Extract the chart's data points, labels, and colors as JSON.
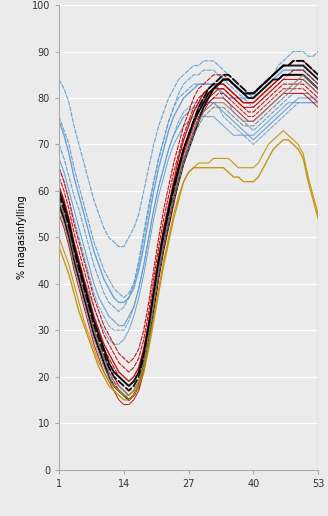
{
  "x_ticks": [
    1,
    14,
    27,
    40,
    53
  ],
  "ylim": [
    0,
    100
  ],
  "xlim": [
    1,
    53
  ],
  "ylabel": "% magasinfylling",
  "yticks": [
    0,
    10,
    20,
    30,
    40,
    50,
    60,
    70,
    80,
    90,
    100
  ],
  "background_color": "#ebebeb",
  "series": [
    {
      "color": "#5b9bd5",
      "lw": 0.8,
      "ls": "--",
      "data": [
        84,
        82,
        79,
        74,
        70,
        66,
        62,
        58,
        55,
        52,
        50,
        49,
        48,
        48,
        50,
        52,
        55,
        60,
        65,
        70,
        74,
        77,
        80,
        82,
        84,
        85,
        86,
        87,
        87,
        88,
        88,
        88,
        87,
        86,
        85,
        84,
        83,
        82,
        81,
        80,
        82,
        83,
        84,
        85,
        87,
        88,
        89,
        90,
        90,
        90,
        89,
        89,
        90
      ]
    },
    {
      "color": "#5b9bd5",
      "lw": 0.8,
      "ls": "--",
      "data": [
        76,
        73,
        70,
        65,
        61,
        57,
        53,
        49,
        46,
        43,
        41,
        39,
        38,
        37,
        38,
        40,
        44,
        50,
        56,
        62,
        67,
        71,
        75,
        78,
        81,
        83,
        84,
        85,
        85,
        86,
        86,
        86,
        85,
        84,
        83,
        82,
        81,
        80,
        79,
        78,
        79,
        80,
        81,
        82,
        83,
        84,
        85,
        86,
        86,
        86,
        85,
        84,
        83
      ]
    },
    {
      "color": "#5b9bd5",
      "lw": 1.0,
      "ls": "-",
      "data": [
        75,
        72,
        68,
        63,
        59,
        55,
        51,
        47,
        44,
        41,
        39,
        37,
        36,
        36,
        37,
        39,
        43,
        48,
        54,
        60,
        65,
        69,
        73,
        76,
        78,
        80,
        81,
        82,
        83,
        83,
        83,
        83,
        82,
        81,
        80,
        80,
        80,
        80,
        80,
        80,
        81,
        82,
        83,
        84,
        85,
        86,
        86,
        86,
        86,
        86,
        85,
        84,
        83
      ]
    },
    {
      "color": "#5b9bd5",
      "lw": 0.8,
      "ls": "-",
      "data": [
        67,
        64,
        60,
        56,
        52,
        48,
        44,
        40,
        37,
        35,
        33,
        32,
        31,
        31,
        33,
        35,
        39,
        44,
        50,
        56,
        61,
        65,
        69,
        72,
        74,
        76,
        77,
        78,
        78,
        79,
        79,
        79,
        78,
        77,
        76,
        75,
        74,
        73,
        72,
        71,
        72,
        73,
        74,
        75,
        76,
        77,
        78,
        79,
        80,
        80,
        80,
        80,
        79
      ]
    },
    {
      "color": "#5b9bd5",
      "lw": 0.8,
      "ls": "--",
      "data": [
        70,
        67,
        63,
        59,
        56,
        52,
        48,
        44,
        41,
        38,
        36,
        35,
        34,
        35,
        37,
        40,
        45,
        51,
        57,
        62,
        67,
        71,
        75,
        78,
        80,
        81,
        82,
        83,
        83,
        83,
        83,
        83,
        82,
        80,
        79,
        77,
        76,
        75,
        74,
        73,
        74,
        75,
        76,
        77,
        78,
        79,
        80,
        81,
        81,
        81,
        81,
        80,
        80
      ]
    },
    {
      "color": "#5b9bd5",
      "lw": 0.7,
      "ls": "--",
      "data": [
        65,
        62,
        58,
        54,
        50,
        46,
        42,
        38,
        35,
        33,
        31,
        30,
        30,
        30,
        32,
        35,
        39,
        44,
        50,
        56,
        61,
        65,
        69,
        72,
        75,
        77,
        78,
        79,
        79,
        79,
        79,
        79,
        78,
        76,
        75,
        74,
        73,
        72,
        71,
        70,
        71,
        72,
        73,
        74,
        75,
        76,
        77,
        78,
        79,
        79,
        79,
        79,
        79
      ]
    },
    {
      "color": "#5b9bd5",
      "lw": 0.7,
      "ls": "-",
      "data": [
        60,
        57,
        53,
        49,
        45,
        41,
        38,
        35,
        32,
        30,
        28,
        27,
        27,
        28,
        30,
        33,
        37,
        42,
        48,
        54,
        59,
        63,
        67,
        70,
        72,
        74,
        75,
        76,
        76,
        76,
        76,
        76,
        75,
        74,
        73,
        72,
        72,
        72,
        72,
        72,
        73,
        74,
        75,
        76,
        77,
        78,
        79,
        79,
        79,
        79,
        79,
        79,
        79
      ]
    },
    {
      "color": "#c00000",
      "lw": 0.8,
      "ls": "--",
      "data": [
        65,
        62,
        58,
        53,
        49,
        45,
        41,
        37,
        34,
        31,
        29,
        27,
        25,
        24,
        23,
        24,
        26,
        30,
        36,
        43,
        50,
        56,
        61,
        66,
        70,
        74,
        77,
        80,
        82,
        83,
        84,
        85,
        85,
        85,
        84,
        83,
        82,
        81,
        81,
        81,
        82,
        83,
        84,
        85,
        86,
        87,
        87,
        88,
        88,
        88,
        87,
        86,
        85
      ]
    },
    {
      "color": "#c00000",
      "lw": 0.8,
      "ls": "--",
      "data": [
        63,
        60,
        56,
        51,
        47,
        43,
        39,
        35,
        32,
        29,
        27,
        25,
        23,
        22,
        21,
        22,
        24,
        28,
        34,
        41,
        48,
        54,
        59,
        64,
        68,
        72,
        75,
        78,
        80,
        81,
        82,
        83,
        83,
        83,
        82,
        81,
        80,
        79,
        79,
        79,
        80,
        81,
        82,
        83,
        84,
        85,
        85,
        86,
        86,
        86,
        85,
        84,
        83
      ]
    },
    {
      "color": "#c00000",
      "lw": 1.0,
      "ls": "-",
      "data": [
        61,
        58,
        54,
        49,
        45,
        41,
        37,
        33,
        30,
        27,
        25,
        23,
        21,
        20,
        19,
        20,
        22,
        26,
        32,
        39,
        46,
        52,
        57,
        62,
        67,
        71,
        74,
        77,
        79,
        81,
        82,
        83,
        83,
        83,
        82,
        81,
        80,
        79,
        79,
        79,
        80,
        81,
        82,
        83,
        84,
        85,
        85,
        85,
        85,
        85,
        84,
        83,
        82
      ]
    },
    {
      "color": "#c00000",
      "lw": 0.8,
      "ls": "-",
      "data": [
        58,
        55,
        51,
        46,
        42,
        38,
        34,
        30,
        27,
        24,
        22,
        20,
        18,
        17,
        16,
        17,
        19,
        23,
        29,
        36,
        43,
        49,
        54,
        59,
        64,
        68,
        71,
        74,
        77,
        79,
        80,
        81,
        82,
        82,
        81,
        80,
        79,
        78,
        78,
        78,
        79,
        80,
        81,
        82,
        83,
        84,
        84,
        84,
        84,
        84,
        83,
        82,
        81
      ]
    },
    {
      "color": "#c00000",
      "lw": 0.8,
      "ls": "--",
      "data": [
        60,
        57,
        53,
        48,
        44,
        40,
        36,
        32,
        29,
        26,
        24,
        22,
        20,
        19,
        18,
        19,
        21,
        25,
        31,
        38,
        45,
        51,
        56,
        61,
        65,
        69,
        72,
        75,
        78,
        80,
        81,
        82,
        82,
        82,
        81,
        80,
        79,
        78,
        77,
        77,
        78,
        79,
        80,
        81,
        82,
        83,
        83,
        83,
        83,
        83,
        82,
        81,
        80
      ]
    },
    {
      "color": "#c00000",
      "lw": 0.7,
      "ls": "--",
      "data": [
        57,
        54,
        50,
        45,
        41,
        37,
        33,
        29,
        26,
        23,
        21,
        19,
        17,
        16,
        15,
        16,
        18,
        22,
        28,
        35,
        42,
        48,
        53,
        58,
        63,
        67,
        70,
        73,
        76,
        78,
        79,
        80,
        81,
        81,
        80,
        79,
        78,
        77,
        76,
        76,
        77,
        78,
        79,
        80,
        81,
        82,
        82,
        82,
        82,
        82,
        81,
        80,
        79
      ]
    },
    {
      "color": "#c00000",
      "lw": 0.7,
      "ls": "-",
      "data": [
        55,
        52,
        48,
        43,
        39,
        35,
        31,
        27,
        24,
        21,
        19,
        17,
        15,
        14,
        14,
        15,
        17,
        21,
        27,
        34,
        41,
        47,
        52,
        57,
        62,
        66,
        69,
        72,
        75,
        77,
        79,
        80,
        80,
        80,
        79,
        78,
        77,
        76,
        75,
        75,
        76,
        77,
        78,
        79,
        80,
        81,
        81,
        81,
        81,
        81,
        80,
        79,
        78
      ]
    },
    {
      "color": "#000000",
      "lw": 1.4,
      "ls": "-",
      "data": [
        57,
        54,
        50,
        45,
        41,
        37,
        33,
        29,
        26,
        23,
        20,
        18,
        17,
        16,
        15,
        16,
        18,
        22,
        28,
        35,
        42,
        48,
        53,
        58,
        62,
        66,
        69,
        72,
        75,
        78,
        80,
        82,
        83,
        84,
        84,
        83,
        82,
        81,
        80,
        80,
        81,
        82,
        83,
        84,
        84,
        85,
        85,
        85,
        85,
        85,
        84,
        83,
        82
      ]
    },
    {
      "color": "#000000",
      "lw": 1.4,
      "ls": "--",
      "data": [
        59,
        56,
        52,
        47,
        43,
        39,
        35,
        31,
        28,
        25,
        22,
        20,
        19,
        18,
        17,
        18,
        20,
        24,
        30,
        37,
        44,
        50,
        55,
        60,
        65,
        69,
        72,
        75,
        78,
        80,
        82,
        83,
        84,
        85,
        85,
        84,
        83,
        82,
        81,
        81,
        82,
        83,
        84,
        85,
        86,
        87,
        87,
        88,
        88,
        88,
        87,
        86,
        85
      ]
    },
    {
      "color": "#000000",
      "lw": 1.4,
      "ls": "-",
      "data": [
        60,
        57,
        53,
        48,
        44,
        40,
        36,
        32,
        29,
        26,
        23,
        21,
        20,
        19,
        18,
        19,
        21,
        25,
        31,
        38,
        45,
        51,
        56,
        61,
        65,
        69,
        72,
        75,
        77,
        79,
        81,
        82,
        83,
        84,
        84,
        83,
        82,
        81,
        81,
        81,
        82,
        83,
        84,
        85,
        86,
        87,
        87,
        87,
        87,
        87,
        86,
        85,
        84
      ]
    },
    {
      "color": "#808080",
      "lw": 0.8,
      "ls": "-",
      "data": [
        58,
        55,
        51,
        46,
        42,
        38,
        34,
        30,
        27,
        24,
        21,
        19,
        18,
        17,
        16,
        17,
        19,
        23,
        29,
        36,
        43,
        49,
        54,
        59,
        63,
        67,
        70,
        73,
        75,
        77,
        78,
        79,
        79,
        79,
        78,
        77,
        76,
        75,
        75,
        75,
        76,
        77,
        78,
        79,
        80,
        81,
        82,
        83,
        84,
        85,
        84,
        83,
        82
      ]
    },
    {
      "color": "#808080",
      "lw": 0.8,
      "ls": "--",
      "data": [
        56,
        53,
        49,
        44,
        40,
        36,
        32,
        28,
        25,
        22,
        20,
        18,
        17,
        16,
        15,
        16,
        18,
        22,
        28,
        35,
        42,
        48,
        53,
        58,
        62,
        66,
        69,
        72,
        74,
        76,
        77,
        78,
        78,
        78,
        77,
        76,
        75,
        74,
        74,
        74,
        75,
        76,
        77,
        78,
        79,
        80,
        81,
        82,
        83,
        84,
        83,
        82,
        81
      ]
    },
    {
      "color": "#bf8f00",
      "lw": 1.0,
      "ls": "-",
      "data": [
        48,
        45,
        42,
        38,
        34,
        31,
        28,
        25,
        22,
        20,
        18,
        17,
        16,
        15,
        15,
        16,
        18,
        21,
        26,
        32,
        38,
        44,
        49,
        54,
        58,
        62,
        64,
        65,
        65,
        65,
        65,
        65,
        65,
        65,
        64,
        63,
        63,
        62,
        62,
        62,
        63,
        65,
        67,
        69,
        70,
        71,
        71,
        70,
        69,
        67,
        62,
        58,
        54
      ]
    },
    {
      "color": "#bf8f00",
      "lw": 0.8,
      "ls": "-",
      "data": [
        50,
        47,
        44,
        40,
        36,
        32,
        29,
        26,
        23,
        21,
        19,
        18,
        17,
        16,
        16,
        17,
        19,
        22,
        27,
        33,
        39,
        45,
        50,
        55,
        59,
        62,
        64,
        65,
        66,
        66,
        66,
        67,
        67,
        67,
        67,
        66,
        65,
        65,
        65,
        65,
        66,
        68,
        70,
        71,
        72,
        73,
        72,
        71,
        70,
        68,
        63,
        59,
        55
      ]
    }
  ]
}
